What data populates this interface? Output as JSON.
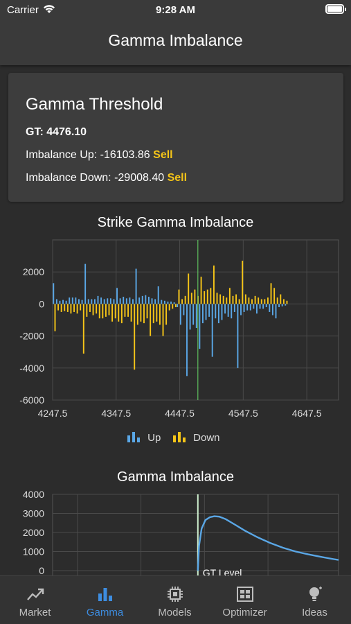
{
  "status_bar": {
    "carrier": "Carrier",
    "time": "9:28 AM"
  },
  "nav": {
    "title": "Gamma Imbalance"
  },
  "threshold_card": {
    "title": "Gamma Threshold",
    "gt_label": "GT:",
    "gt_value": "4476.10",
    "imbalance_up_label": "Imbalance Up:",
    "imbalance_up_value": "-16103.86",
    "imbalance_up_signal": "Sell",
    "imbalance_down_label": "Imbalance Down:",
    "imbalance_down_value": "-29008.40",
    "imbalance_down_signal": "Sell"
  },
  "colors": {
    "up": "#5aa7e6",
    "down": "#f5c518",
    "threshold_line": "#5fbf5f",
    "curve": "#5aa7e6",
    "sell": "#f5c518",
    "active_tab": "#3d8de0"
  },
  "chart_data": [
    {
      "type": "bar",
      "title": "Strike Gamma Imbalance",
      "x_ticks": [
        "4247.5",
        "4347.5",
        "4447.5",
        "4547.5",
        "4647.5"
      ],
      "y_ticks": [
        "2000",
        "0",
        "-2000",
        "-4000",
        "-6000"
      ],
      "xlim": [
        4247.5,
        4697.5
      ],
      "ylim": [
        -6000,
        4000
      ],
      "grid": true,
      "legend_position": "bottom",
      "gt_level": 4476.1,
      "strike_start": 4247.5,
      "strike_step": 5,
      "series": [
        {
          "name": "Up",
          "values": [
            1300,
            300,
            200,
            250,
            200,
            400,
            400,
            400,
            300,
            250,
            2500,
            300,
            300,
            300,
            500,
            400,
            300,
            350,
            350,
            300,
            1000,
            350,
            450,
            350,
            400,
            300,
            2200,
            400,
            500,
            550,
            450,
            350,
            300,
            1100,
            250,
            200,
            150,
            150,
            100,
            -200,
            -1300,
            -700,
            -4500,
            -1600,
            -1300,
            -1500,
            -2800,
            -1200,
            -1000,
            -800,
            -3300,
            -900,
            -1200,
            -1000,
            -600,
            -800,
            -900,
            -500,
            -4000,
            -700,
            -500,
            -400,
            -400,
            -300,
            -600,
            -300,
            -300,
            -200,
            -500,
            -700,
            -900,
            -200,
            -150,
            -100
          ]
        },
        {
          "name": "Down",
          "values": [
            -1700,
            -400,
            -500,
            -450,
            -500,
            -600,
            -500,
            -600,
            -400,
            -3100,
            -800,
            -500,
            -700,
            -600,
            -900,
            -900,
            -800,
            -700,
            -1100,
            -900,
            -1100,
            -1200,
            -800,
            -800,
            -1100,
            -4100,
            -1300,
            -1100,
            -1200,
            -900,
            -2000,
            -1200,
            -1100,
            -1300,
            -2000,
            -1300,
            -400,
            -300,
            -200,
            900,
            300,
            500,
            1900,
            700,
            900,
            500,
            1700,
            800,
            900,
            1000,
            2400,
            700,
            600,
            500,
            400,
            1000,
            500,
            600,
            300,
            2700,
            600,
            400,
            300,
            500,
            400,
            300,
            300,
            400,
            1300,
            1000,
            400,
            600,
            300,
            200
          ]
        }
      ]
    },
    {
      "type": "line",
      "title": "Gamma Imbalance",
      "y_ticks": [
        "4000",
        "3000",
        "2000",
        "1000",
        "0"
      ],
      "ylim": [
        0,
        4000
      ],
      "xlim": [
        4247.5,
        4697.5
      ],
      "gt_level": 4476.1,
      "annotation": "GT Level",
      "series": [
        {
          "name": "",
          "x": [
            4476.1,
            4478,
            4482,
            4488,
            4495,
            4502,
            4510,
            4520,
            4535,
            4550,
            4570,
            4590,
            4610,
            4630,
            4650,
            4670,
            4690,
            4697.5
          ],
          "values": [
            0,
            1300,
            2200,
            2650,
            2800,
            2850,
            2830,
            2700,
            2400,
            2100,
            1750,
            1450,
            1200,
            1000,
            850,
            720,
            600,
            560
          ]
        }
      ]
    }
  ],
  "tabbar": {
    "tabs": [
      {
        "label": "Market",
        "icon": "trend-icon",
        "active": false
      },
      {
        "label": "Gamma",
        "icon": "bar-chart-icon",
        "active": true
      },
      {
        "label": "Models",
        "icon": "chip-icon",
        "active": false
      },
      {
        "label": "Optimizer",
        "icon": "optimizer-icon",
        "active": false
      },
      {
        "label": "Ideas",
        "icon": "lightbulb-icon",
        "active": false
      }
    ]
  }
}
